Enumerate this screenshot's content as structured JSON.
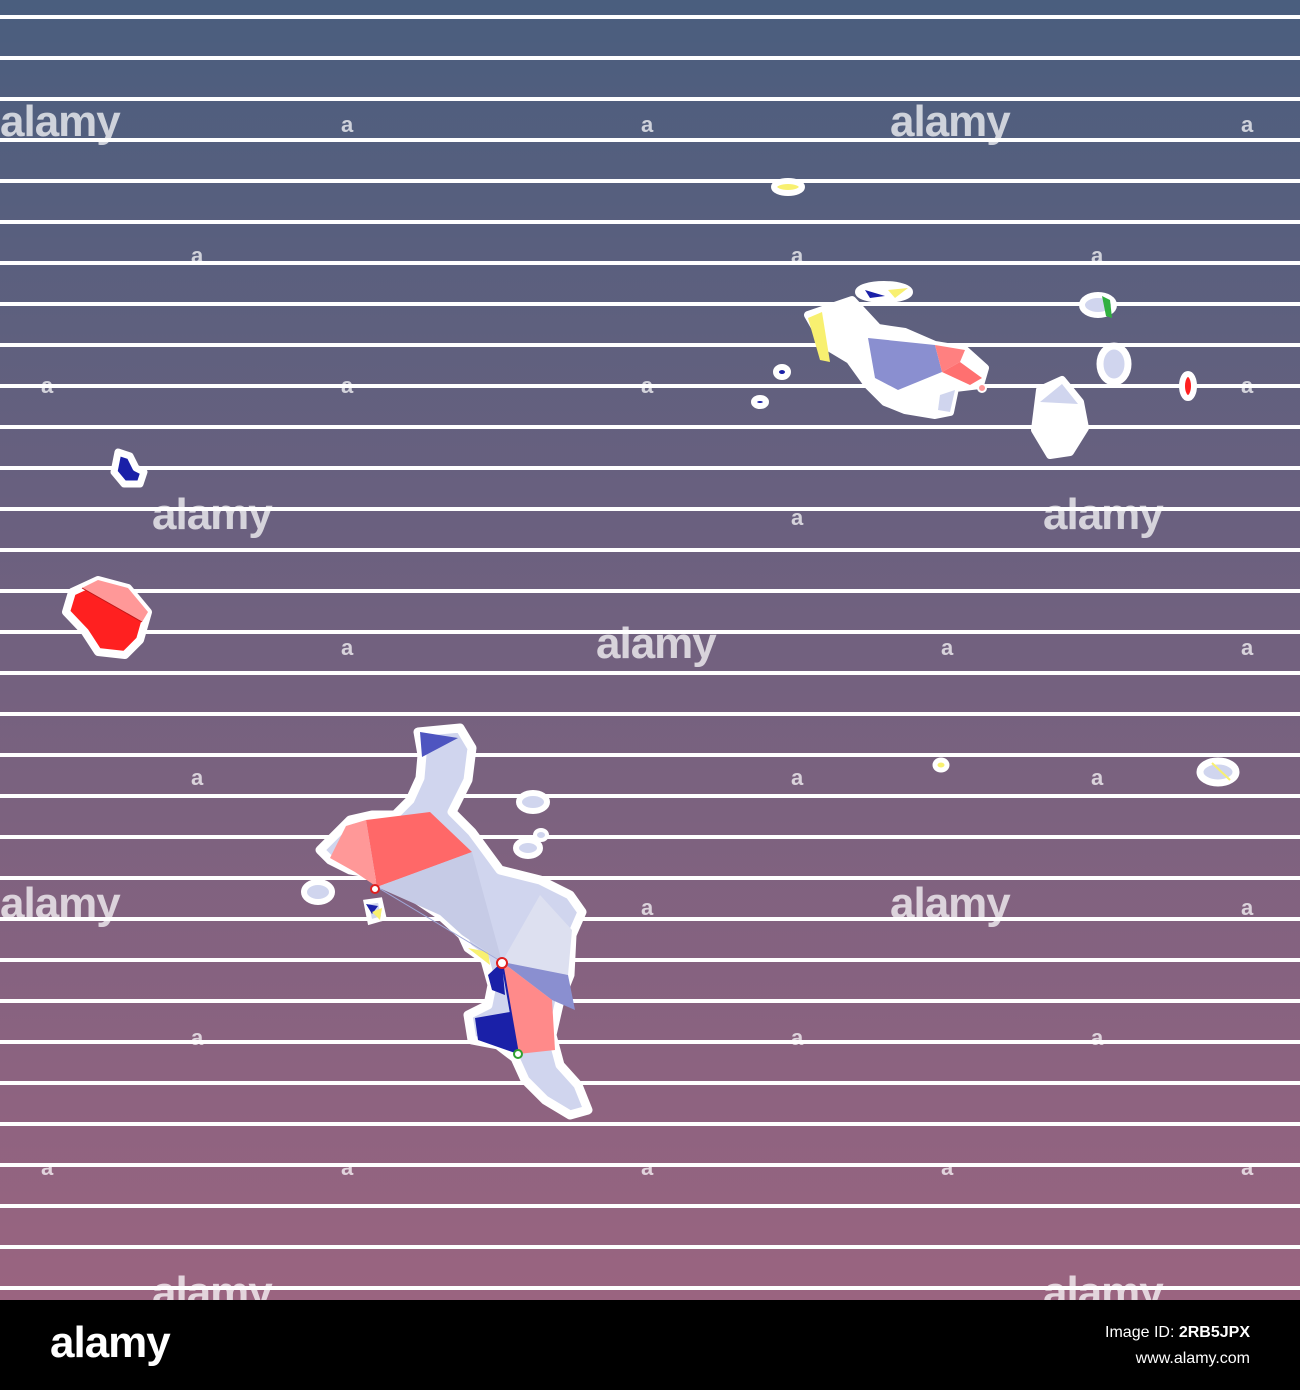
{
  "watermark": {
    "word": "alamy",
    "mark": "a"
  },
  "footer": {
    "logo": "alamy",
    "image_id_label": "Image ID:",
    "image_id": "2RB5JPX",
    "site": "www.alamy.com"
  },
  "colors": {
    "background_top": "#4a5e7e",
    "background_bottom": "#9a6480",
    "stripes": "#ffffff",
    "land_light": "#d0d5ee",
    "land_mid": "#8a8fd0",
    "land_dark": "#1a20a8",
    "red": "#ff2020",
    "salmon": "#ff6868",
    "pink": "#ff9898",
    "yellow": "#f8f070",
    "green": "#30b040"
  }
}
